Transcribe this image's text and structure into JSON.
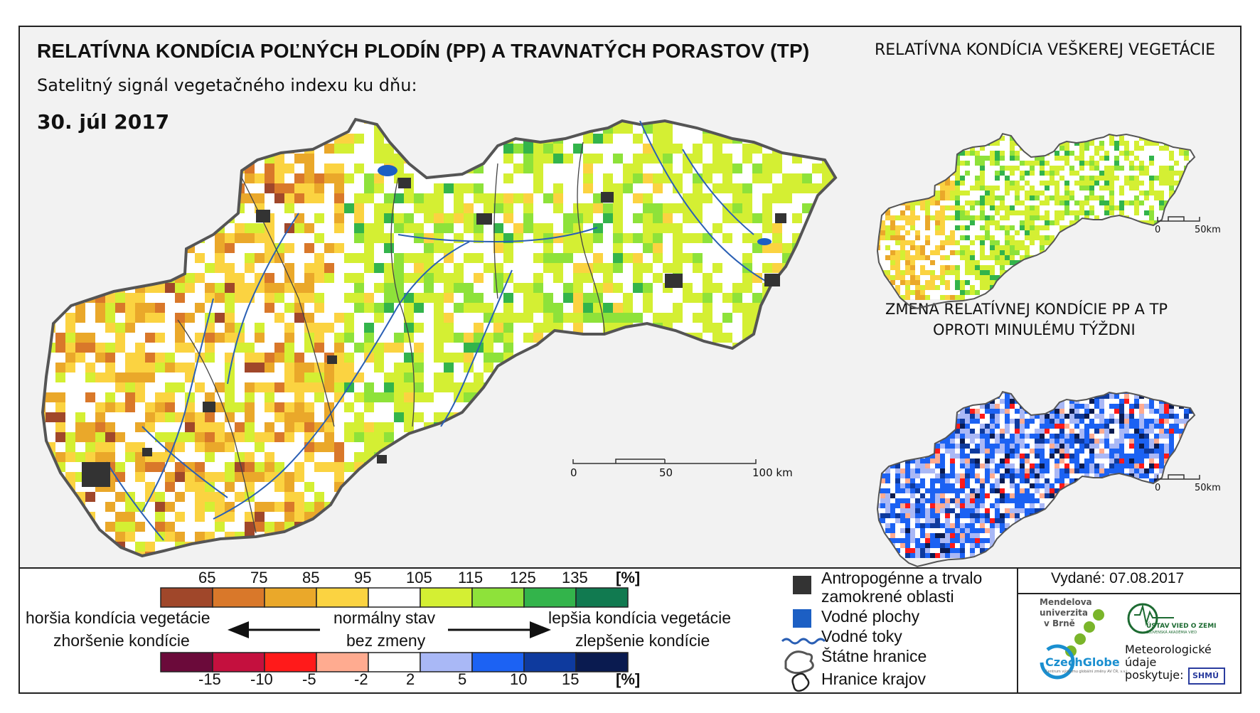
{
  "header": {
    "title": "RELATÍVNA KONDÍCIA POĽNÝCH PLODÍN (PP) A TRAVNATÝCH PORASTOV (TP)",
    "subtitle": "Satelitný signál vegetačného indexu ku dňu:",
    "date": "30. júl 2017",
    "right_title": "RELATÍVNA KONDÍCIA VEŠKEREJ VEGETÁCIE",
    "change_title_1": "ZMENA RELATÍVNEJ KONDÍCIE PP A TP",
    "change_title_2": "OPROTI MINULÉMU TÝŽDNI"
  },
  "scalebars": {
    "main": {
      "l0": "0",
      "l1": "50",
      "l2": "100 km"
    },
    "small": {
      "l0": "0",
      "l1": "50km"
    }
  },
  "legend": {
    "condition_unit": "[%]",
    "condition_ticks": [
      "65",
      "75",
      "85",
      "95",
      "105",
      "115",
      "125",
      "135"
    ],
    "condition_colors": [
      "#a0472a",
      "#d9782a",
      "#eaa82a",
      "#fbd341",
      "#ffffff",
      "#d4ef33",
      "#8ee23a",
      "#33b44b",
      "#117a50"
    ],
    "change_unit": "[%]",
    "change_ticks": [
      "-15",
      "-10",
      "-5",
      "-2",
      "2",
      "5",
      "10",
      "15"
    ],
    "change_colors": [
      "#6b0a3a",
      "#c4103e",
      "#ff1a1a",
      "#ffab90",
      "#ffffff",
      "#a9b8f6",
      "#1c62f3",
      "#0e3a9e",
      "#0a1b50"
    ],
    "worse_label": "horšia kondícia vegetácie",
    "worse_change_label": "zhoršenie kondície",
    "normal_label": "normálny stav",
    "no_change_label": "bez zmeny",
    "better_label": "lepšia kondícia vegetácie",
    "better_change_label": "zlepšenie kondície"
  },
  "symbols": {
    "anthropogenic_1": "Antropogénne a trvalo",
    "anthropogenic_2": "zamokrené oblasti",
    "water_bodies": "Vodné plochy",
    "rivers": "Vodné toky",
    "state_border": "Štátne hranice",
    "region_border": "Hranice krajov"
  },
  "publisher": {
    "issued": "Vydané: 07.08.2017",
    "mendel_1": "Mendelova",
    "mendel_2": "univerzita",
    "mendel_3": "v Brně",
    "czechglobe": "CzechGlobe",
    "czechglobe_small": "Centrum výzkumu globální změny AV ČR, v.v.i.",
    "uvoz": "ÚSTAV VIED O ZEMI",
    "uvoz_small": "SLOVENSKÁ AKADÉMIA VIED",
    "met_1": "Meteorologické",
    "met_2": "údaje",
    "met_3": "poskytuje:",
    "shmu": "SHMÚ"
  }
}
